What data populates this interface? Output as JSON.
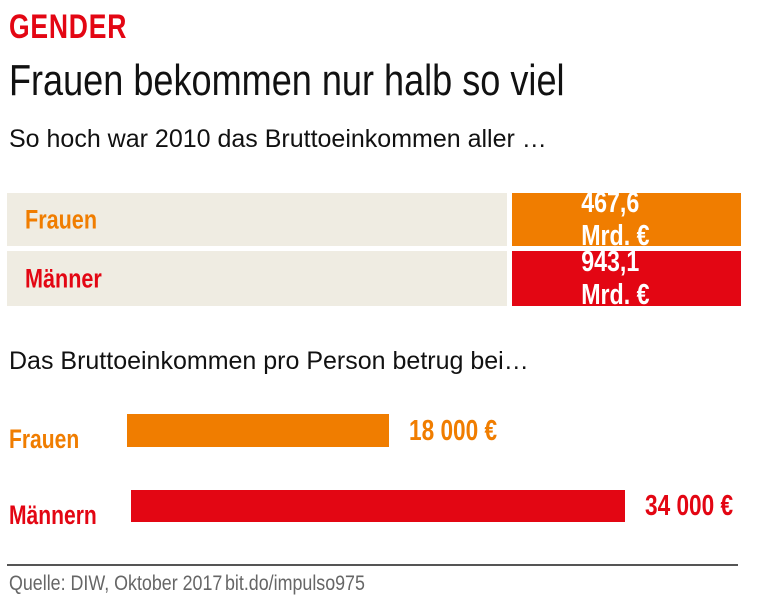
{
  "kicker": "GENDER",
  "title": "Frauen bekommen nur halb so viel",
  "subtitle": "So hoch war 2010 das Bruttoeinkommen aller …",
  "subtitle2": "Das Bruttoeinkommen pro Person betrug bei…",
  "colors": {
    "women": "#f07d00",
    "men": "#e30613",
    "panel": "#efece2"
  },
  "chart_data": [
    {
      "type": "table",
      "title": "So hoch war 2010 das Bruttoeinkommen aller …",
      "rows": [
        {
          "label": "Frauen",
          "value": 467.6,
          "display": "467,6 Mrd. €"
        },
        {
          "label": "Männer",
          "value": 943.1,
          "display": "943,1 Mrd. €"
        }
      ]
    },
    {
      "type": "bar",
      "orientation": "horizontal",
      "title": "Das Bruttoeinkommen pro Person betrug bei…",
      "categories": [
        "Frauen",
        "Männern"
      ],
      "values": [
        18000,
        34000
      ],
      "labels": [
        "18 000 €",
        "34 000 €"
      ],
      "xlim": [
        0,
        34000
      ]
    }
  ],
  "footer": {
    "source": "Quelle: DIW, Oktober 2017",
    "link": "bit.do/impulso975"
  }
}
